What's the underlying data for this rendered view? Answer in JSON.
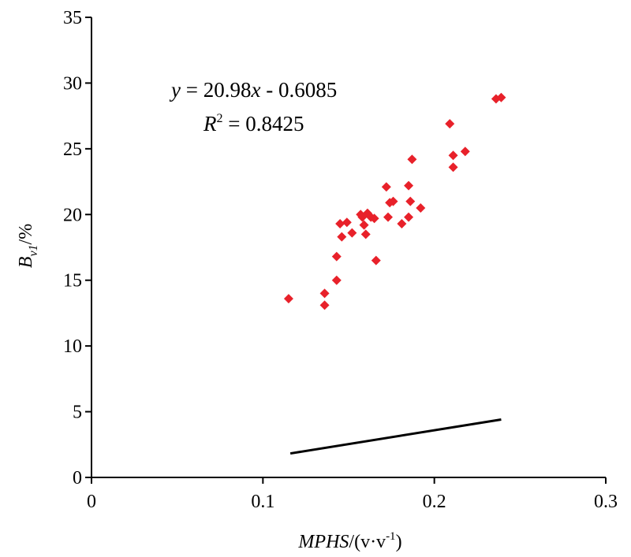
{
  "chart_data": {
    "type": "scatter",
    "xlabel": {
      "italic": "MPHS",
      "rest": "/(v·v",
      "sup": "-1",
      "close": ")"
    },
    "ylabel": {
      "italic": "B",
      "sub": "v1",
      "rest": "/%"
    },
    "xlim": [
      0,
      0.3
    ],
    "ylim": [
      0,
      35
    ],
    "x_ticks": [
      "0",
      "0.1",
      "0.2",
      "0.3"
    ],
    "y_ticks": [
      "0",
      "5",
      "10",
      "15",
      "20",
      "25",
      "30",
      "35"
    ],
    "x_tick_values": [
      0,
      0.1,
      0.2,
      0.3
    ],
    "y_tick_values": [
      0,
      5,
      10,
      15,
      20,
      25,
      30,
      35
    ],
    "grid": false,
    "marker": "diamond",
    "point_color": "#e8212a",
    "line_color": "#000000",
    "points": [
      [
        0.115,
        13.6
      ],
      [
        0.136,
        14.0
      ],
      [
        0.136,
        13.1
      ],
      [
        0.143,
        15.0
      ],
      [
        0.143,
        16.8
      ],
      [
        0.145,
        19.3
      ],
      [
        0.146,
        18.3
      ],
      [
        0.149,
        19.4
      ],
      [
        0.152,
        18.6
      ],
      [
        0.157,
        20.0
      ],
      [
        0.158,
        19.8
      ],
      [
        0.159,
        19.2
      ],
      [
        0.16,
        18.5
      ],
      [
        0.161,
        20.1
      ],
      [
        0.163,
        19.8
      ],
      [
        0.165,
        19.7
      ],
      [
        0.166,
        16.5
      ],
      [
        0.172,
        22.1
      ],
      [
        0.173,
        19.8
      ],
      [
        0.174,
        20.9
      ],
      [
        0.176,
        21.0
      ],
      [
        0.181,
        19.3
      ],
      [
        0.185,
        22.2
      ],
      [
        0.185,
        19.8
      ],
      [
        0.186,
        21.0
      ],
      [
        0.187,
        24.2
      ],
      [
        0.192,
        20.5
      ],
      [
        0.209,
        26.9
      ],
      [
        0.211,
        24.5
      ],
      [
        0.211,
        23.6
      ],
      [
        0.218,
        24.8
      ],
      [
        0.236,
        28.8
      ],
      [
        0.239,
        28.9
      ]
    ],
    "fit_line": {
      "slope": 20.98,
      "intercept": -0.6085,
      "x_range": [
        0.116,
        0.239
      ]
    },
    "equation": {
      "y": "y",
      "eq": " = 20.98",
      "x": "x",
      "rest": " - 0.6085"
    },
    "r_squared": {
      "label": "R",
      "sup": "2",
      "value": " = 0.8425"
    }
  }
}
